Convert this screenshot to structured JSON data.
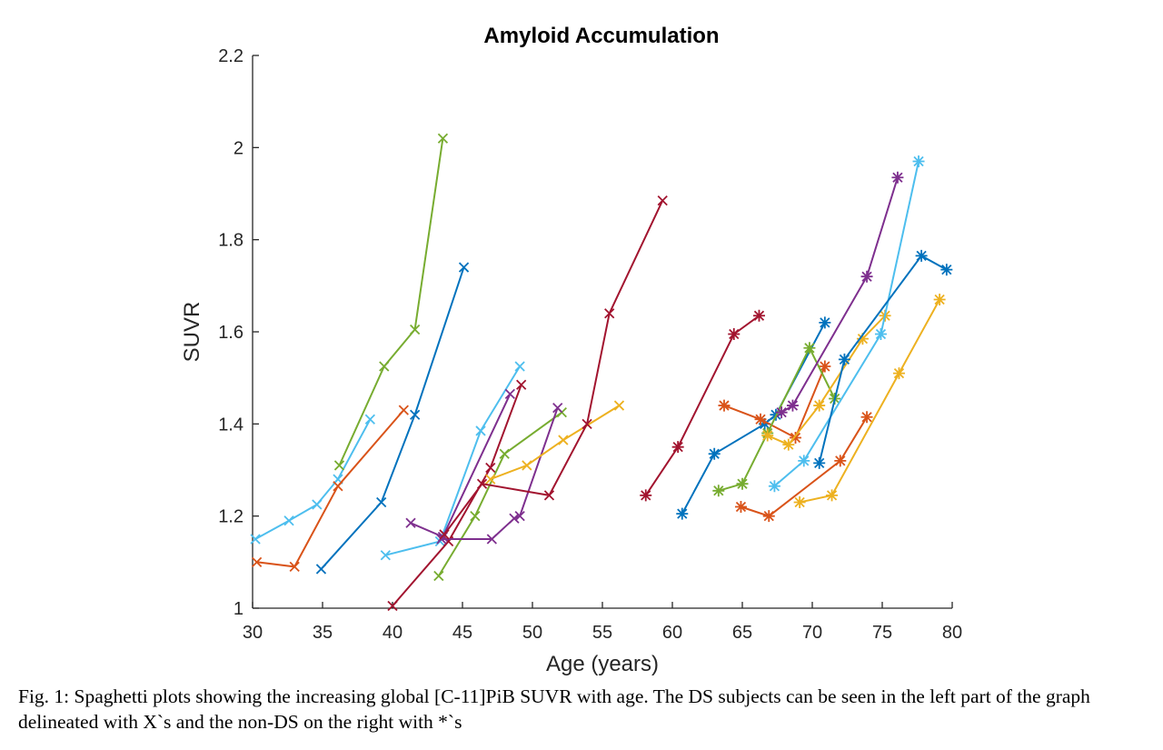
{
  "chart_data": {
    "type": "line",
    "title": "Amyloid Accumulation",
    "xlabel": "Age (years)",
    "ylabel": "SUVR",
    "xlim": [
      30,
      80
    ],
    "ylim": [
      1,
      2.2
    ],
    "xticks": [
      "30",
      "35",
      "40",
      "45",
      "50",
      "55",
      "60",
      "65",
      "70",
      "75",
      "80"
    ],
    "yticks": [
      "1",
      "1.2",
      "1.4",
      "1.6",
      "1.8",
      "2",
      "2.2"
    ],
    "grid": false,
    "legend": "none",
    "series": [
      {
        "group": "DS",
        "marker": "x",
        "color": "#4DBEEE",
        "points": [
          [
            30.2,
            1.15
          ],
          [
            32.6,
            1.19
          ],
          [
            34.6,
            1.225
          ],
          [
            36.1,
            1.28
          ],
          [
            38.4,
            1.41
          ]
        ]
      },
      {
        "group": "DS",
        "marker": "x",
        "color": "#D95319",
        "points": [
          [
            30.3,
            1.1
          ],
          [
            33.0,
            1.09
          ],
          [
            36.1,
            1.265
          ],
          [
            40.8,
            1.43
          ]
        ]
      },
      {
        "group": "DS",
        "marker": "x",
        "color": "#77AC30",
        "points": [
          [
            36.2,
            1.31
          ],
          [
            39.4,
            1.525
          ],
          [
            41.6,
            1.605
          ],
          [
            43.6,
            2.02
          ]
        ]
      },
      {
        "group": "DS",
        "marker": "x",
        "color": "#0072BD",
        "points": [
          [
            34.9,
            1.085
          ],
          [
            39.2,
            1.23
          ],
          [
            41.6,
            1.42
          ],
          [
            45.1,
            1.74
          ]
        ]
      },
      {
        "group": "DS",
        "marker": "x",
        "color": "#4DBEEE",
        "points": [
          [
            39.5,
            1.115
          ],
          [
            43.4,
            1.145
          ],
          [
            46.3,
            1.385
          ],
          [
            49.1,
            1.525
          ]
        ]
      },
      {
        "group": "DS",
        "marker": "x",
        "color": "#A2142F",
        "points": [
          [
            40.0,
            1.005
          ],
          [
            44.0,
            1.145
          ],
          [
            47.0,
            1.305
          ],
          [
            49.2,
            1.485
          ]
        ]
      },
      {
        "group": "DS",
        "marker": "x",
        "color": "#7E2F8E",
        "points": [
          [
            41.3,
            1.185
          ],
          [
            43.6,
            1.155
          ],
          [
            48.4,
            1.465
          ]
        ]
      },
      {
        "group": "DS",
        "marker": "x",
        "color": "#77AC30",
        "points": [
          [
            43.3,
            1.07
          ],
          [
            45.9,
            1.2
          ],
          [
            48.0,
            1.335
          ],
          [
            52.1,
            1.425
          ]
        ]
      },
      {
        "group": "DS",
        "marker": "x",
        "color": "#7E2F8E",
        "points": [
          [
            43.5,
            1.15
          ],
          [
            47.1,
            1.15
          ],
          [
            48.7,
            1.195
          ],
          [
            49.1,
            1.2
          ],
          [
            51.8,
            1.435
          ]
        ]
      },
      {
        "group": "DS",
        "marker": "x",
        "color": "#EDB120",
        "points": [
          [
            47.0,
            1.28
          ],
          [
            49.6,
            1.31
          ],
          [
            52.2,
            1.365
          ],
          [
            56.2,
            1.44
          ]
        ]
      },
      {
        "group": "DS",
        "marker": "x",
        "color": "#A2142F",
        "points": [
          [
            43.7,
            1.16
          ],
          [
            46.4,
            1.27
          ],
          [
            51.2,
            1.245
          ],
          [
            53.9,
            1.4
          ],
          [
            55.5,
            1.64
          ],
          [
            59.3,
            1.885
          ]
        ]
      },
      {
        "group": "Non-DS",
        "marker": "*",
        "color": "#A2142F",
        "points": [
          [
            58.1,
            1.245
          ],
          [
            60.4,
            1.35
          ],
          [
            64.4,
            1.595
          ],
          [
            66.2,
            1.635
          ]
        ]
      },
      {
        "group": "Non-DS",
        "marker": "*",
        "color": "#0072BD",
        "points": [
          [
            60.7,
            1.205
          ],
          [
            63.0,
            1.335
          ],
          [
            66.6,
            1.4
          ],
          [
            67.4,
            1.42
          ],
          [
            70.9,
            1.62
          ]
        ]
      },
      {
        "group": "Non-DS",
        "marker": "*",
        "color": "#D95319",
        "points": [
          [
            63.7,
            1.44
          ],
          [
            66.3,
            1.41
          ],
          [
            68.8,
            1.37
          ],
          [
            70.9,
            1.525
          ]
        ]
      },
      {
        "group": "Non-DS",
        "marker": "*",
        "color": "#77AC30",
        "points": [
          [
            63.3,
            1.255
          ],
          [
            65.0,
            1.27
          ],
          [
            66.8,
            1.38
          ],
          [
            69.8,
            1.565
          ],
          [
            71.6,
            1.455
          ]
        ]
      },
      {
        "group": "Non-DS",
        "marker": "*",
        "color": "#EDB120",
        "points": [
          [
            66.8,
            1.375
          ],
          [
            68.3,
            1.355
          ],
          [
            70.5,
            1.44
          ],
          [
            73.6,
            1.585
          ],
          [
            75.2,
            1.635
          ]
        ]
      },
      {
        "group": "Non-DS",
        "marker": "*",
        "color": "#7E2F8E",
        "points": [
          [
            67.8,
            1.425
          ],
          [
            68.6,
            1.44
          ],
          [
            73.9,
            1.72
          ],
          [
            76.1,
            1.935
          ]
        ]
      },
      {
        "group": "Non-DS",
        "marker": "*",
        "color": "#D95319",
        "points": [
          [
            64.9,
            1.22
          ],
          [
            66.9,
            1.2
          ],
          [
            72.0,
            1.32
          ],
          [
            73.9,
            1.415
          ]
        ]
      },
      {
        "group": "Non-DS",
        "marker": "*",
        "color": "#4DBEEE",
        "points": [
          [
            67.3,
            1.265
          ],
          [
            69.4,
            1.32
          ],
          [
            74.9,
            1.595
          ],
          [
            77.6,
            1.97
          ]
        ]
      },
      {
        "group": "Non-DS",
        "marker": "*",
        "color": "#0072BD",
        "points": [
          [
            70.5,
            1.315
          ],
          [
            72.3,
            1.54
          ],
          [
            77.8,
            1.765
          ],
          [
            79.6,
            1.735
          ]
        ]
      },
      {
        "group": "Non-DS",
        "marker": "*",
        "color": "#EDB120",
        "points": [
          [
            69.1,
            1.23
          ],
          [
            71.4,
            1.245
          ],
          [
            76.2,
            1.51
          ],
          [
            79.1,
            1.67
          ]
        ]
      }
    ]
  },
  "caption": "Fig. 1: Spaghetti plots showing the increasing global [C-11]PiB SUVR with age. The DS subjects can be seen in the left part of the graph delineated with X`s and the non-DS on the right with *`s"
}
